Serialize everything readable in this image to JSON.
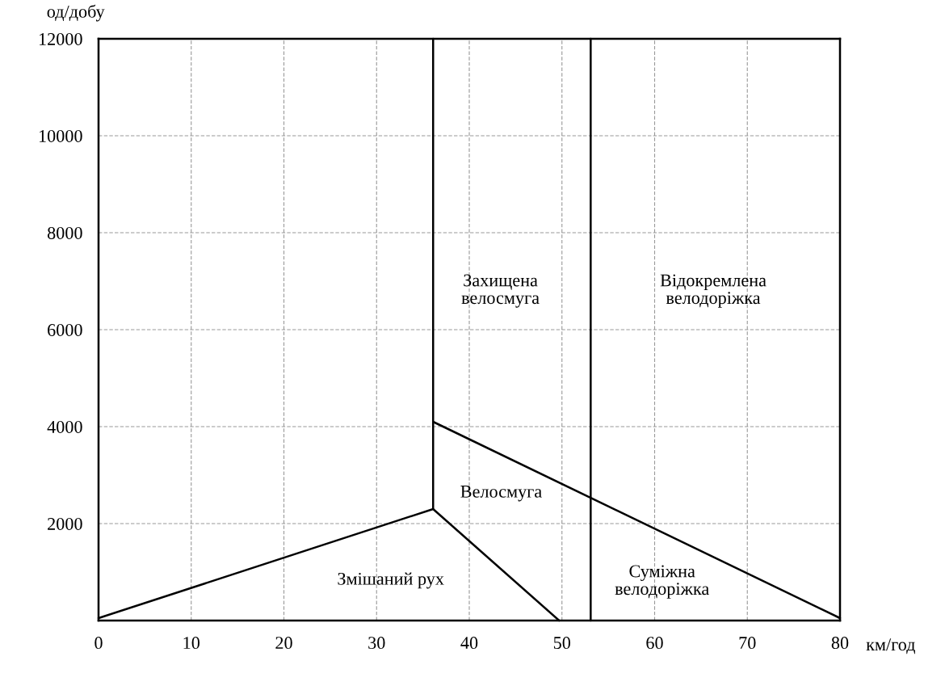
{
  "chart_data": {
    "type": "line",
    "xlabel": "км/год",
    "ylabel": "од/добу",
    "xlim": [
      0,
      80
    ],
    "ylim": [
      0,
      12000
    ],
    "xticks": [
      0,
      10,
      20,
      30,
      40,
      50,
      60,
      70,
      80
    ],
    "yticks": [
      {
        "value": 0,
        "label": null
      },
      2000,
      4000,
      6000,
      8000,
      10000,
      12000
    ],
    "grid": true,
    "marker": "none",
    "line_style": "solid",
    "series": [
      {
        "color": "#000000",
        "x": [
          0,
          36.1,
          49.7
        ],
        "values": [
          50,
          2300,
          0
        ]
      },
      {
        "color": "#000000",
        "x": [
          36.1,
          36.1
        ],
        "values": [
          2300,
          12000
        ]
      },
      {
        "color": "#000000",
        "x": [
          36.1,
          80
        ],
        "values": [
          4100,
          50
        ]
      },
      {
        "color": "#000000",
        "x": [
          53.1,
          53.1
        ],
        "values": [
          0,
          12000
        ]
      }
    ],
    "annotations": [
      "Захищена\nвелосмуга",
      "Відокремлена\nвелодоріжка",
      "Велосмуга",
      "Змішаний рух",
      "Суміжна\nвелодоріжка"
    ]
  }
}
